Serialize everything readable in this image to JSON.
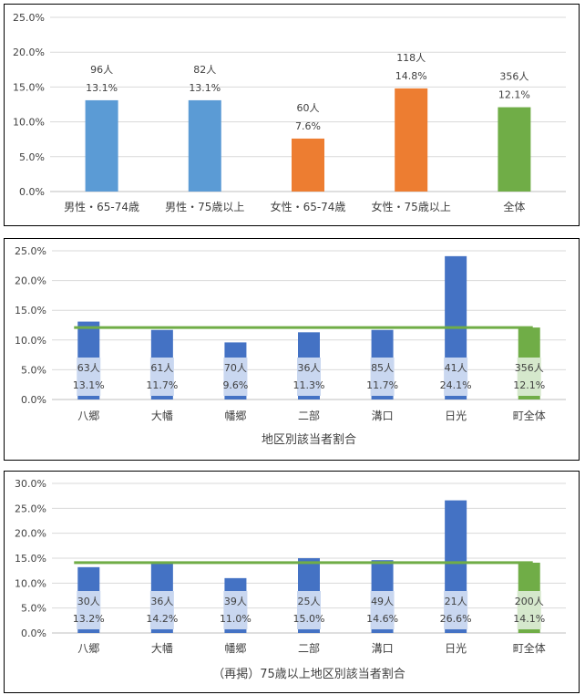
{
  "chart_data": [
    {
      "type": "bar",
      "title": "",
      "categories": [
        "男性・65-74歳",
        "男性・75歳以上",
        "女性・65-74歳",
        "女性・75歳以上",
        "全体"
      ],
      "values": [
        13.1,
        13.1,
        7.6,
        14.8,
        12.1
      ],
      "counts": [
        "96人",
        "82人",
        "60人",
        "118人",
        "356人"
      ],
      "labels": [
        "13.1%",
        "13.1%",
        "7.6%",
        "14.8%",
        "12.1%"
      ],
      "colors": [
        "#5b9bd5",
        "#5b9bd5",
        "#ed7d31",
        "#ed7d31",
        "#70ad47"
      ],
      "ylim": [
        0,
        25
      ],
      "yticks": [
        "0.0%",
        "5.0%",
        "10.0%",
        "15.0%",
        "20.0%",
        "25.0%"
      ],
      "grid": true
    },
    {
      "type": "bar",
      "title": "地区別該当者割合",
      "categories": [
        "八郷",
        "大幡",
        "幡郷",
        "二部",
        "溝口",
        "日光",
        "町全体"
      ],
      "values": [
        13.1,
        11.7,
        9.6,
        11.3,
        11.7,
        24.1,
        12.1
      ],
      "counts": [
        "63人",
        "61人",
        "70人",
        "36人",
        "85人",
        "41人",
        "356人"
      ],
      "labels": [
        "13.1%",
        "11.7%",
        "9.6%",
        "11.3%",
        "11.7%",
        "24.1%",
        "12.1%"
      ],
      "colors": [
        "#4472c4",
        "#4472c4",
        "#4472c4",
        "#4472c4",
        "#4472c4",
        "#4472c4",
        "#70ad47"
      ],
      "reference_line": 12.1,
      "reference_color": "#70ad47",
      "ylim": [
        0,
        25
      ],
      "yticks": [
        "0.0%",
        "5.0%",
        "10.0%",
        "15.0%",
        "20.0%",
        "25.0%"
      ],
      "grid": true
    },
    {
      "type": "bar",
      "title": "（再掲）75歳以上地区別該当者割合",
      "categories": [
        "八郷",
        "大幡",
        "幡郷",
        "二部",
        "溝口",
        "日光",
        "町全体"
      ],
      "values": [
        13.2,
        14.2,
        11.0,
        15.0,
        14.6,
        26.6,
        14.1
      ],
      "counts": [
        "30人",
        "36人",
        "39人",
        "25人",
        "49人",
        "21人",
        "200人"
      ],
      "labels": [
        "13.2%",
        "14.2%",
        "11.0%",
        "15.0%",
        "14.6%",
        "26.6%",
        "14.1%"
      ],
      "colors": [
        "#4472c4",
        "#4472c4",
        "#4472c4",
        "#4472c4",
        "#4472c4",
        "#4472c4",
        "#70ad47"
      ],
      "reference_line": 14.1,
      "reference_color": "#70ad47",
      "ylim": [
        0,
        30
      ],
      "yticks": [
        "0.0%",
        "5.0%",
        "10.0%",
        "15.0%",
        "20.0%",
        "25.0%",
        "30.0%"
      ],
      "grid": true
    }
  ]
}
